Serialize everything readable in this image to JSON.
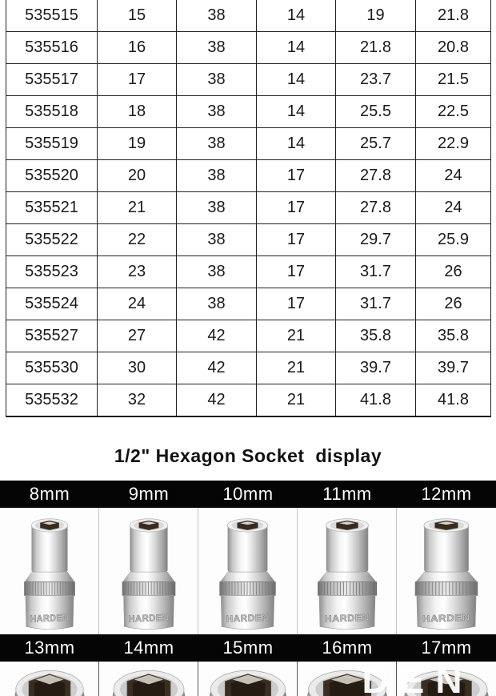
{
  "table": {
    "rows": [
      [
        "535515",
        "15",
        "38",
        "14",
        "19",
        "21.8"
      ],
      [
        "535516",
        "16",
        "38",
        "14",
        "21.8",
        "20.8"
      ],
      [
        "535517",
        "17",
        "38",
        "14",
        "23.7",
        "21.5"
      ],
      [
        "535518",
        "18",
        "38",
        "14",
        "25.5",
        "22.5"
      ],
      [
        "535519",
        "19",
        "38",
        "14",
        "25.7",
        "22.9"
      ],
      [
        "535520",
        "20",
        "38",
        "17",
        "27.8",
        "24"
      ],
      [
        "535521",
        "21",
        "38",
        "17",
        "27.8",
        "24"
      ],
      [
        "535522",
        "22",
        "38",
        "17",
        "29.7",
        "25.9"
      ],
      [
        "535523",
        "23",
        "38",
        "17",
        "31.7",
        "26"
      ],
      [
        "535524",
        "24",
        "38",
        "17",
        "31.7",
        "26"
      ],
      [
        "535527",
        "27",
        "42",
        "21",
        "35.8",
        "35.8"
      ],
      [
        "535530",
        "30",
        "42",
        "21",
        "39.7",
        "39.7"
      ],
      [
        "535532",
        "32",
        "42",
        "21",
        "41.8",
        "41.8"
      ]
    ]
  },
  "section": {
    "title": "1/2\" Hexagon Socket  display"
  },
  "display": {
    "row1_sizes": [
      "8mm",
      "9mm",
      "10mm",
      "11mm",
      "12mm"
    ],
    "row2_sizes": [
      "13mm",
      "14mm",
      "15mm",
      "16mm",
      "17mm"
    ],
    "brand_stamp": "HARDEN",
    "watermark": "DEN"
  },
  "colors": {
    "bar_background": "#050505",
    "bar_text": "#ffffff",
    "table_border": "#222222",
    "socket_hole": "#372b20"
  }
}
